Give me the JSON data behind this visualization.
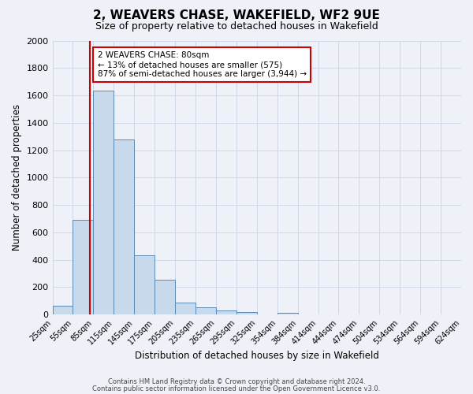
{
  "title": "2, WEAVERS CHASE, WAKEFIELD, WF2 9UE",
  "subtitle": "Size of property relative to detached houses in Wakefield",
  "xlabel": "Distribution of detached houses by size in Wakefield",
  "ylabel": "Number of detached properties",
  "bar_values": [
    65,
    690,
    1635,
    1280,
    435,
    255,
    90,
    55,
    30,
    20,
    0,
    15,
    0,
    0,
    0,
    0,
    0,
    0,
    0,
    0
  ],
  "bin_labels": [
    "25sqm",
    "55sqm",
    "85sqm",
    "115sqm",
    "145sqm",
    "175sqm",
    "205sqm",
    "235sqm",
    "265sqm",
    "295sqm",
    "325sqm",
    "354sqm",
    "384sqm",
    "414sqm",
    "444sqm",
    "474sqm",
    "504sqm",
    "534sqm",
    "564sqm",
    "594sqm",
    "624sqm"
  ],
  "bar_color": "#c9d9ec",
  "bar_edge_color": "#5a8ab5",
  "grid_color": "#d0d8e8",
  "background_color": "#eef2f8",
  "vline_x_idx": 1,
  "vline_color": "#cc0000",
  "annotation_text": "2 WEAVERS CHASE: 80sqm\n← 13% of detached houses are smaller (575)\n87% of semi-detached houses are larger (3,944) →",
  "annotation_box_color": "#ffffff",
  "annotation_box_edge": "#cc0000",
  "ylim": [
    0,
    2000
  ],
  "yticks": [
    0,
    200,
    400,
    600,
    800,
    1000,
    1200,
    1400,
    1600,
    1800,
    2000
  ],
  "n_bins": 20,
  "footer_line1": "Contains HM Land Registry data © Crown copyright and database right 2024.",
  "footer_line2": "Contains public sector information licensed under the Open Government Licence v3.0."
}
